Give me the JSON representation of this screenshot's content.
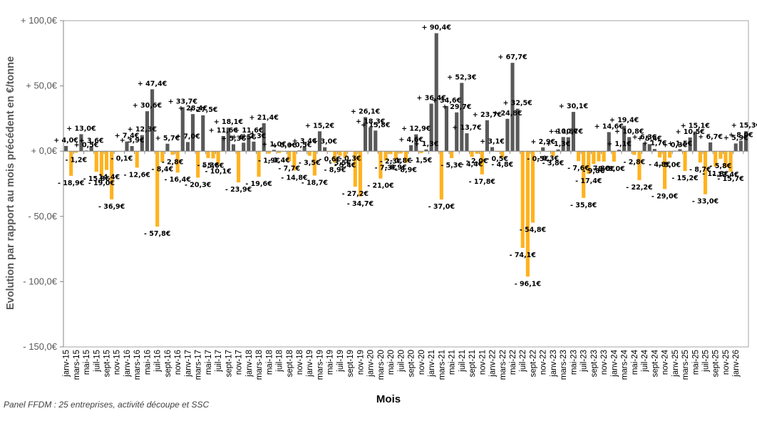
{
  "chart_data": {
    "type": "bar",
    "title": "",
    "xlabel": "Mois",
    "ylabel": "Evolution par rapport au mois précédent en €/tonne",
    "ylim": [
      -150,
      100
    ],
    "yticks": [
      100,
      50,
      0,
      -50,
      -100,
      -150
    ],
    "ytick_labels": [
      "+ 100,0€",
      "+ 50,0€",
      "+ 0,0€",
      "- 50,0€",
      "- 100,0€",
      "- 150,0€"
    ],
    "grid": false,
    "legend": "none",
    "positive_color": "#595959",
    "negative_color": "#FFB21E",
    "categories": [
      "janv-15",
      "févr-15",
      "mars-15",
      "avr-15",
      "mai-15",
      "juin-15",
      "juil-15",
      "août-15",
      "sept-15",
      "oct-15",
      "nov-15",
      "déc-15",
      "janv-16",
      "févr-16",
      "mars-16",
      "avr-16",
      "mai-16",
      "juin-16",
      "juil-16",
      "août-16",
      "sept-16",
      "oct-16",
      "nov-16",
      "déc-16",
      "janv-17",
      "févr-17",
      "mars-17",
      "avr-17",
      "mai-17",
      "juin-17",
      "juil-17",
      "août-17",
      "sept-17",
      "oct-17",
      "nov-17",
      "déc-17",
      "janv-18",
      "févr-18",
      "mars-18",
      "avr-18",
      "mai-18",
      "juin-18",
      "juil-18",
      "août-18",
      "sept-18",
      "oct-18",
      "nov-18",
      "déc-18",
      "janv-19",
      "févr-19",
      "mars-19",
      "avr-19",
      "mai-19",
      "juin-19",
      "juil-19",
      "août-19",
      "sept-19",
      "oct-19",
      "nov-19",
      "déc-19",
      "janv-20",
      "févr-20",
      "mars-20",
      "avr-20",
      "mai-20",
      "juin-20",
      "juil-20",
      "août-20",
      "sept-20",
      "oct-20",
      "nov-20",
      "déc-20",
      "janv-21",
      "févr-21",
      "mars-21",
      "avr-21",
      "mai-21",
      "juin-21",
      "juil-21",
      "août-21",
      "sept-21",
      "oct-21",
      "nov-21",
      "déc-21",
      "janv-22",
      "févr-22",
      "mars-22",
      "avr-22",
      "mai-22",
      "juin-22",
      "juil-22",
      "août-22",
      "sept-22",
      "oct-22",
      "nov-22",
      "déc-22",
      "janv-23",
      "févr-23",
      "mars-23",
      "avr-23",
      "mai-23",
      "juin-23",
      "juil-23",
      "août-23",
      "sept-23",
      "oct-23",
      "nov-23",
      "déc-23",
      "janv-24",
      "févr-24",
      "mars-24",
      "avr-24",
      "mai-24",
      "juin-24",
      "juil-24",
      "août-24",
      "sept-24",
      "oct-24",
      "nov-24",
      "déc-24",
      "janv-25",
      "févr-25",
      "mars-25",
      "avr-25",
      "mai-25",
      "juin-25",
      "juil-25",
      "août-25",
      "sept-25",
      "oct-25",
      "nov-25",
      "déc-25",
      "janv-26"
    ],
    "xtick_labels": [
      "janv-15",
      "mars-15",
      "mai-15",
      "juil-15",
      "sept-15",
      "nov-15",
      "janv-16",
      "mars-16",
      "mai-16",
      "juil-16",
      "sept-16",
      "nov-16",
      "janv-17",
      "mars-17",
      "mai-17",
      "juil-17",
      "sept-17",
      "nov-17",
      "janv-18",
      "mars-18",
      "mai-18",
      "juil-18",
      "sept-18",
      "nov-18",
      "janv-19",
      "mars-19",
      "mai-19",
      "juil-19",
      "sept-19",
      "nov-19",
      "janv-20",
      "mars-20",
      "mai-20",
      "juil-20",
      "sept-20",
      "nov-20",
      "janv-21",
      "mars-21",
      "mai-21",
      "juil-21",
      "sept-21",
      "nov-21",
      "janv-22",
      "mars-22",
      "mai-22",
      "juil-22",
      "sept-22",
      "nov-22",
      "janv-23",
      "mars-23",
      "mai-23",
      "juil-23",
      "sept-23",
      "nov-23",
      "janv-24",
      "mars-24",
      "mai-24",
      "juil-24",
      "sept-24",
      "nov-24",
      "janv-25",
      "mars-25",
      "mai-25",
      "juil-25",
      "sept-25",
      "nov-25",
      "janv-26"
    ],
    "values": [
      4.0,
      -18.9,
      -1.2,
      13.0,
      0.5,
      3.6,
      -15.8,
      -19.0,
      -14.4,
      -36.9,
      0.0,
      -0.1,
      7.4,
      3.9,
      -12.6,
      12.3,
      30.6,
      47.4,
      -57.8,
      -8.4,
      5.7,
      -2.8,
      -16.4,
      33.7,
      7.0,
      28.4,
      -20.3,
      27.5,
      -5.3,
      -5.6,
      -10.1,
      11.6,
      18.1,
      5.3,
      -23.9,
      6.5,
      11.6,
      7.3,
      -19.6,
      21.4,
      -1.9,
      1.0,
      -1.4,
      0.0,
      -7.7,
      -14.8,
      0.5,
      3.4,
      -3.5,
      -18.7,
      15.2,
      3.0,
      -0.6,
      -8.9,
      -3.5,
      -5.4,
      -0.3,
      -27.2,
      -34.7,
      26.1,
      18.3,
      15.8,
      -21.0,
      -7.3,
      -2.3,
      -6.9,
      -1.8,
      -8.9,
      4.6,
      12.9,
      -1.5,
      1.3,
      36.4,
      90.4,
      -37.0,
      34.6,
      -5.3,
      29.7,
      52.3,
      13.7,
      -4.4,
      -2.0,
      -17.8,
      23.7,
      3.1,
      -0.5,
      -4.8,
      24.8,
      67.7,
      32.5,
      -74.1,
      -96.1,
      -54.8,
      -0.5,
      2.9,
      -0.3,
      -3.8,
      1.3,
      10.8,
      10.7,
      30.1,
      -7.6,
      -35.8,
      -17.4,
      -9.8,
      -7.8,
      -8.0,
      14.6,
      -8.0,
      1.1,
      19.4,
      10.8,
      -2.8,
      -22.2,
      6.3,
      5.4,
      1.7,
      -4.8,
      -29.0,
      -5.0,
      0.3,
      1.5,
      -15.2,
      10.5,
      15.1,
      -8.7,
      -33.0,
      6.7,
      -11.8,
      -5.8,
      -12.4,
      -15.7,
      5.9,
      8.0,
      15.3
    ],
    "data_labels": [
      "+ 4,0€",
      "- 18,9€",
      "- 1,2€",
      "+ 13,0€",
      "+ 0,5€",
      "+ 3,6€",
      "- 15,8€",
      "- 19,0€",
      "- 14,4€",
      "- 36,9€",
      "",
      "- 0,1€",
      "+ 7,4€",
      "+ 3,9€",
      "- 12,6€",
      "+ 12,3€",
      "+ 30,6€",
      "+ 47,4€",
      "- 57,8€",
      "- 8,4€",
      "+ 5,7€",
      "- 2,8€",
      "- 16,4€",
      "+ 33,7€",
      "+ 7,0€",
      "+ 28,4€",
      "- 20,3€",
      "+ 27,5€",
      "- 5,3€",
      "- 5,6€",
      "- 10,1€",
      "+ 11,6€",
      "+ 18,1€",
      "+ 5,3€",
      "- 23,9€",
      "+ 6,5€",
      "+ 11,6€",
      "+ 7,3€",
      "- 19,6€",
      "+ 21,4€",
      "- 1,9€",
      "+ 1,0€",
      "- 1,4€",
      "+ 0,0€",
      "- 7,7€",
      "- 14,8€",
      "+ 0,5€",
      "+ 3,4€",
      "- 3,5€",
      "- 18,7€",
      "+ 15,2€",
      "+ 3,0€",
      "- 0,6€",
      "- 8,9€",
      "- 3,5€",
      "- 5,4€",
      "- 0,3€",
      "- 27,2€",
      "- 34,7€",
      "+ 26,1€",
      "+ 18,3€",
      "+ 15,8€",
      "- 21,0€",
      "- 7,3€",
      "- 2,3€",
      "- 6,9€",
      "- 1,8€",
      "- 8,9€",
      "+ 4,6€",
      "+ 12,9€",
      "- 1,5€",
      "+ 1,3€",
      "+ 36,4€",
      "+ 90,4€",
      "- 37,0€",
      "+ 34,6€",
      "- 5,3€",
      "+ 29,7€",
      "+ 52,3€",
      "+ 13,7€",
      "- 4,4€",
      "- 2,0€",
      "- 17,8€",
      "+ 23,7€",
      "+ 3,1€",
      "- 0,5€",
      "- 4,8€",
      "+ 24,8€",
      "+ 67,7€",
      "+ 32,5€",
      "- 74,1€",
      "- 96,1€",
      "- 54,8€",
      "- 0,5€",
      "+ 2,9€",
      "- 0,3€",
      "- 3,8€",
      "+ 1,3€",
      "+ 10,8€",
      "+ 10,7€",
      "+ 30,1€",
      "- 7,6€",
      "- 35,8€",
      "- 17,4€",
      "- 9,8€",
      "- 7,8€",
      "- 8,0€",
      "+ 14,6€",
      "- 8,0€",
      "+ 1,1€",
      "+ 19,4€",
      "+ 10,8€",
      "- 2,8€",
      "- 22,2€",
      "+ 6,3€",
      "+ 5,4€",
      "+ 1,7€",
      "- 4,8€",
      "- 29,0€",
      "- 5,0€",
      "+ 0,3€",
      "+ 1,5€",
      "- 15,2€",
      "+ 10,5€",
      "+ 15,1€",
      "- 8,7€",
      "- 33,0€",
      "+ 6,7€",
      "- 11,8€",
      "- 5,8€",
      "- 12,4€",
      "- 15,7€",
      "+ 5,9€",
      "+ 8,0€",
      "+ 15,3€"
    ]
  },
  "footer": {
    "source_note": "Panel FFDM : 25 entreprises, activité découpe et SSC"
  }
}
